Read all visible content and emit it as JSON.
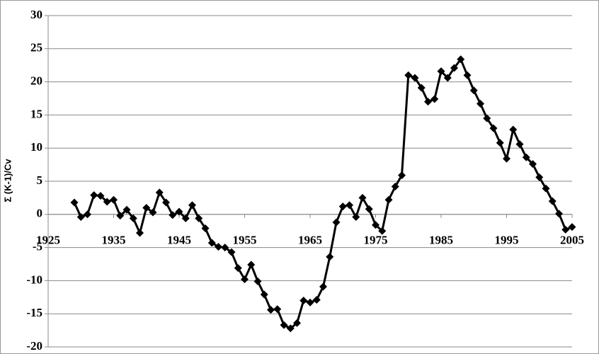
{
  "chart_data": {
    "type": "line",
    "y_label": "Σ (K-1)/Cv",
    "x": [
      1929,
      1930,
      1931,
      1932,
      1933,
      1934,
      1935,
      1936,
      1937,
      1938,
      1939,
      1940,
      1941,
      1942,
      1943,
      1944,
      1945,
      1946,
      1947,
      1948,
      1949,
      1950,
      1951,
      1952,
      1953,
      1954,
      1955,
      1956,
      1957,
      1958,
      1959,
      1960,
      1961,
      1962,
      1963,
      1964,
      1965,
      1966,
      1967,
      1968,
      1969,
      1970,
      1971,
      1972,
      1973,
      1974,
      1975,
      1976,
      1977,
      1978,
      1979,
      1980,
      1981,
      1982,
      1983,
      1984,
      1985,
      1986,
      1987,
      1988,
      1989,
      1990,
      1991,
      1992,
      1993,
      1994,
      1995,
      1996,
      1997,
      1998,
      1999,
      2000,
      2001,
      2002,
      2003,
      2004,
      2005
    ],
    "series": [
      {
        "color": "#000000",
        "values": [
          1.8,
          -0.4,
          0,
          2.9,
          2.8,
          1.9,
          2.2,
          -0.2,
          0.7,
          -0.6,
          -2.8,
          1.0,
          0.3,
          3.3,
          1.8,
          -0.1,
          0.4,
          -0.6,
          1.4,
          -0.6,
          -2.1,
          -4.3,
          -4.9,
          -5.0,
          -5.7,
          -8.1,
          -9.8,
          -7.6,
          -10.1,
          -12.1,
          -14.4,
          -14.3,
          -16.7,
          -17.2,
          -16.4,
          -13.0,
          -13.3,
          -12.9,
          -10.9,
          -6.4,
          -1.2,
          1.2,
          1.4,
          -0.4,
          2.5,
          0.8,
          -1.6,
          -2.5,
          2.2,
          4.2,
          5.9,
          21.0,
          20.6,
          19.1,
          17.0,
          17.4,
          21.6,
          20.6,
          22.1,
          23.4,
          21.0,
          18.7,
          16.7,
          14.5,
          13.0,
          10.8,
          8.4,
          12.8,
          10.6,
          8.6,
          7.6,
          5.6,
          3.9,
          2.0,
          0.1,
          -2.3,
          -1.9
        ]
      }
    ],
    "xlim": [
      1925,
      2005
    ],
    "xticks": [
      1925,
      1935,
      1945,
      1955,
      1965,
      1975,
      1985,
      1995,
      2005
    ],
    "ylim": [
      -20,
      30
    ],
    "yticks": [
      -20,
      -15,
      -10,
      -5,
      0,
      5,
      10,
      15,
      20,
      25,
      30
    ],
    "grid": true
  }
}
